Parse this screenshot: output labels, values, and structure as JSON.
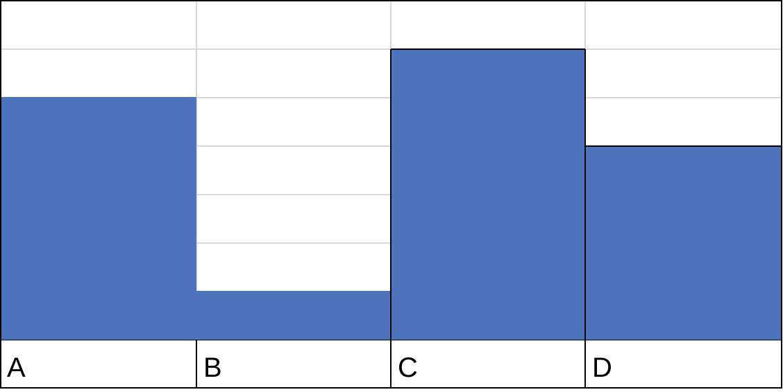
{
  "chart_data": {
    "type": "bar",
    "categories": [
      "A",
      "B",
      "C",
      "D"
    ],
    "values": [
      5,
      1,
      6,
      4
    ],
    "ylim": [
      0,
      7
    ],
    "grid": true,
    "bar_color": "#4d74bd",
    "grid_color": "#d9d9d9",
    "border_color": "#000000"
  }
}
